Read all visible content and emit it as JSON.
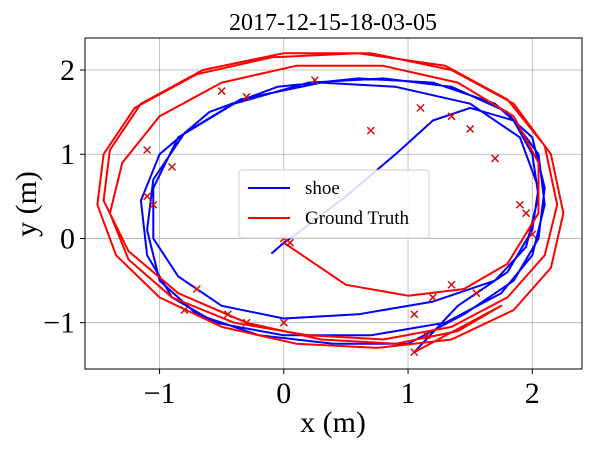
{
  "chart_data": {
    "type": "line",
    "title": "2017-12-15-18-03-05",
    "xlabel": "x (m)",
    "ylabel": "y (m)",
    "xlim": [
      -1.6,
      2.4
    ],
    "ylim": [
      -1.55,
      2.38
    ],
    "x_ticks": [
      -1,
      0,
      1,
      2
    ],
    "y_ticks": [
      -1,
      0,
      1,
      2
    ],
    "x_tick_labels": [
      "−1",
      "0",
      "1",
      "2"
    ],
    "y_tick_labels": [
      "−1",
      "0",
      "1",
      "2"
    ],
    "grid": true,
    "legend_position": "center",
    "series": [
      {
        "name": "shoe",
        "color": "#0000ff",
        "points": [
          [
            -0.1,
            -0.18
          ],
          [
            0.0,
            -0.05
          ],
          [
            0.1,
            0.05
          ],
          [
            0.5,
            0.5
          ],
          [
            0.9,
            1.0
          ],
          [
            1.2,
            1.4
          ],
          [
            1.5,
            1.55
          ],
          [
            1.85,
            1.4
          ],
          [
            2.0,
            1.0
          ],
          [
            2.05,
            0.5
          ],
          [
            1.95,
            -0.1
          ],
          [
            1.7,
            -0.5
          ],
          [
            1.2,
            -0.75
          ],
          [
            0.6,
            -0.9
          ],
          [
            0.0,
            -0.95
          ],
          [
            -0.5,
            -0.8
          ],
          [
            -0.85,
            -0.45
          ],
          [
            -1.05,
            0.0
          ],
          [
            -1.05,
            0.6
          ],
          [
            -0.85,
            1.2
          ],
          [
            -0.4,
            1.6
          ],
          [
            0.2,
            1.85
          ],
          [
            0.8,
            1.9
          ],
          [
            1.35,
            1.8
          ],
          [
            1.8,
            1.5
          ],
          [
            2.05,
            1.0
          ],
          [
            2.1,
            0.4
          ],
          [
            2.0,
            -0.2
          ],
          [
            1.75,
            -0.65
          ],
          [
            1.3,
            -1.0
          ],
          [
            0.7,
            -1.15
          ],
          [
            0.0,
            -1.15
          ],
          [
            -0.55,
            -1.0
          ],
          [
            -0.9,
            -0.7
          ],
          [
            -1.1,
            -0.2
          ],
          [
            -1.15,
            0.45
          ],
          [
            -1.0,
            1.0
          ],
          [
            -0.6,
            1.5
          ],
          [
            -0.05,
            1.8
          ],
          [
            0.6,
            1.9
          ],
          [
            1.2,
            1.85
          ],
          [
            1.7,
            1.6
          ],
          [
            2.0,
            1.2
          ],
          [
            2.1,
            0.6
          ],
          [
            2.05,
            0.0
          ],
          [
            1.85,
            -0.5
          ],
          [
            1.45,
            -0.9
          ],
          [
            1.0,
            -1.25
          ],
          [
            0.4,
            -1.25
          ],
          [
            -0.2,
            -1.15
          ],
          [
            -0.7,
            -0.9
          ],
          [
            -1.0,
            -0.5
          ],
          [
            -1.1,
            0.1
          ],
          [
            -1.05,
            0.7
          ],
          [
            -0.8,
            1.25
          ],
          [
            -0.35,
            1.65
          ],
          [
            0.3,
            1.85
          ],
          [
            0.9,
            1.8
          ],
          [
            1.5,
            1.6
          ],
          [
            1.9,
            1.2
          ],
          [
            2.05,
            0.6
          ],
          [
            2.0,
            0.1
          ],
          [
            1.8,
            -0.4
          ],
          [
            1.4,
            -0.8
          ],
          [
            1.05,
            -1.35
          ]
        ]
      },
      {
        "name": "Ground Truth",
        "color": "#ff0000",
        "points": [
          [
            0.0,
            -0.05
          ],
          [
            0.05,
            -0.1
          ],
          [
            0.5,
            -0.55
          ],
          [
            1.0,
            -0.68
          ],
          [
            1.45,
            -0.6
          ],
          [
            1.8,
            -0.3
          ],
          [
            2.05,
            0.3
          ],
          [
            2.05,
            0.9
          ],
          [
            1.85,
            1.45
          ],
          [
            1.4,
            1.85
          ],
          [
            0.8,
            2.05
          ],
          [
            0.1,
            2.05
          ],
          [
            -0.5,
            1.85
          ],
          [
            -1.0,
            1.45
          ],
          [
            -1.3,
            0.9
          ],
          [
            -1.4,
            0.3
          ],
          [
            -1.25,
            -0.25
          ],
          [
            -0.9,
            -0.7
          ],
          [
            -0.4,
            -1.0
          ],
          [
            0.2,
            -1.15
          ],
          [
            0.8,
            -1.2
          ],
          [
            1.35,
            -1.05
          ],
          [
            1.8,
            -0.7
          ],
          [
            2.1,
            -0.2
          ],
          [
            2.2,
            0.4
          ],
          [
            2.1,
            1.1
          ],
          [
            1.8,
            1.65
          ],
          [
            1.3,
            2.05
          ],
          [
            0.6,
            2.2
          ],
          [
            -0.1,
            2.15
          ],
          [
            -0.7,
            1.95
          ],
          [
            -1.2,
            1.55
          ],
          [
            -1.45,
            1.0
          ],
          [
            -1.5,
            0.4
          ],
          [
            -1.35,
            -0.2
          ],
          [
            -1.0,
            -0.7
          ],
          [
            -0.5,
            -1.05
          ],
          [
            0.1,
            -1.25
          ],
          [
            0.75,
            -1.3
          ],
          [
            1.35,
            -1.2
          ],
          [
            1.85,
            -0.85
          ],
          [
            2.15,
            -0.35
          ],
          [
            2.25,
            0.3
          ],
          [
            2.15,
            1.0
          ],
          [
            1.85,
            1.6
          ],
          [
            1.35,
            2.0
          ],
          [
            0.7,
            2.2
          ],
          [
            0.0,
            2.2
          ],
          [
            -0.65,
            2.0
          ],
          [
            -1.15,
            1.6
          ],
          [
            -1.4,
            1.05
          ],
          [
            -1.45,
            0.45
          ],
          [
            -1.25,
            -0.15
          ],
          [
            -0.85,
            -0.65
          ],
          [
            -0.3,
            -1.0
          ],
          [
            0.3,
            -1.2
          ],
          [
            0.9,
            -1.25
          ],
          [
            1.4,
            -1.1
          ],
          [
            1.75,
            -0.8
          ],
          [
            1.05,
            -1.35
          ]
        ]
      }
    ],
    "markers": [
      [
        -1.1,
        1.05
      ],
      [
        -0.9,
        0.85
      ],
      [
        -1.1,
        0.5
      ],
      [
        -1.05,
        0.4
      ],
      [
        -0.7,
        -0.6
      ],
      [
        -0.45,
        -0.9
      ],
      [
        -0.3,
        -1.0
      ],
      [
        0.0,
        -1.0
      ],
      [
        0.0,
        0.0
      ],
      [
        0.05,
        -0.05
      ],
      [
        -0.5,
        1.75
      ],
      [
        -0.3,
        1.68
      ],
      [
        0.25,
        1.88
      ],
      [
        0.7,
        1.28
      ],
      [
        1.1,
        1.55
      ],
      [
        1.35,
        1.45
      ],
      [
        1.5,
        1.3
      ],
      [
        1.7,
        0.95
      ],
      [
        1.9,
        0.4
      ],
      [
        1.95,
        0.3
      ],
      [
        2.0,
        0.05
      ],
      [
        1.55,
        -0.65
      ],
      [
        1.35,
        -0.55
      ],
      [
        1.15,
        -1.15
      ],
      [
        1.05,
        -0.9
      ],
      [
        1.05,
        -1.35
      ],
      [
        -0.8,
        -0.85
      ],
      [
        1.2,
        -0.7
      ]
    ]
  },
  "legend": {
    "items": [
      {
        "label": "shoe",
        "color": "#0000ff"
      },
      {
        "label": "Ground Truth",
        "color": "#ff0000"
      }
    ]
  }
}
